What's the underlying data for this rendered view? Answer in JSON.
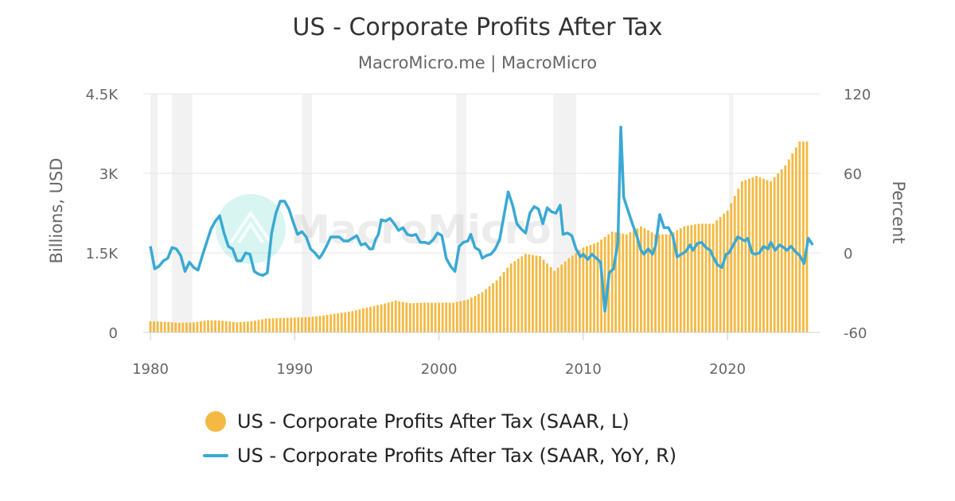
{
  "chart_data": {
    "type": "bar+line",
    "title": "US - Corporate Profits After Tax",
    "subtitle": "MacroMicro.me | MacroMicro",
    "watermark": "MacroMicro",
    "x_ticks": [
      "1980",
      "1990",
      "2000",
      "2010",
      "2020"
    ],
    "xlim": [
      1980,
      2026
    ],
    "y_left": {
      "label": "Billions, USD",
      "ticks": [
        "0",
        "1.5K",
        "3K",
        "4.5K"
      ],
      "ylim": [
        0,
        4500
      ]
    },
    "y_right": {
      "label": "Percent",
      "ticks": [
        "-60",
        "0",
        "60",
        "120"
      ],
      "ylim": [
        -60,
        120
      ]
    },
    "recessions": [
      [
        1980.0,
        1980.5
      ],
      [
        1981.5,
        1982.9
      ],
      [
        1990.5,
        1991.2
      ],
      [
        2001.2,
        2001.9
      ],
      [
        2007.9,
        2009.5
      ],
      [
        2020.1,
        2020.4
      ]
    ],
    "colors": {
      "bars": "#f4b942",
      "line": "#3aa9d4",
      "recession": "#f2f2f2",
      "grid": "#e6e6e6"
    },
    "series": [
      {
        "name": "US - Corporate Profits After Tax (SAAR, L)",
        "type": "bar",
        "axis": "left",
        "points": [
          [
            1980,
            210
          ],
          [
            1981,
            200
          ],
          [
            1982,
            180
          ],
          [
            1983,
            190
          ],
          [
            1984,
            230
          ],
          [
            1985,
            220
          ],
          [
            1986,
            190
          ],
          [
            1987,
            210
          ],
          [
            1988,
            260
          ],
          [
            1989,
            270
          ],
          [
            1990,
            280
          ],
          [
            1991,
            290
          ],
          [
            1992,
            320
          ],
          [
            1993,
            360
          ],
          [
            1994,
            400
          ],
          [
            1995,
            470
          ],
          [
            1996,
            530
          ],
          [
            1997,
            600
          ],
          [
            1998,
            550
          ],
          [
            1999,
            560
          ],
          [
            2000,
            560
          ],
          [
            2001,
            560
          ],
          [
            2002,
            620
          ],
          [
            2003,
            760
          ],
          [
            2004,
            980
          ],
          [
            2005,
            1300
          ],
          [
            2006,
            1480
          ],
          [
            2007,
            1440
          ],
          [
            2008,
            1160
          ],
          [
            2009,
            1400
          ],
          [
            2010,
            1600
          ],
          [
            2011,
            1700
          ],
          [
            2012,
            1900
          ],
          [
            2013,
            1850
          ],
          [
            2014,
            2000
          ],
          [
            2015,
            1850
          ],
          [
            2016,
            1850
          ],
          [
            2017,
            2000
          ],
          [
            2018,
            2050
          ],
          [
            2019,
            2050
          ],
          [
            2020,
            2300
          ],
          [
            2021,
            2850
          ],
          [
            2022,
            2950
          ],
          [
            2023,
            2850
          ],
          [
            2024,
            3150
          ],
          [
            2025,
            3600
          ]
        ]
      },
      {
        "name": "US - Corporate Profits After Tax (SAAR, YoY, R)",
        "type": "line",
        "axis": "right",
        "points": [
          [
            1980.0,
            5
          ],
          [
            1980.3,
            -12
          ],
          [
            1980.6,
            -10
          ],
          [
            1980.9,
            -6
          ],
          [
            1981.2,
            -4
          ],
          [
            1981.5,
            4
          ],
          [
            1981.8,
            3
          ],
          [
            1982.1,
            -2
          ],
          [
            1982.4,
            -14
          ],
          [
            1982.7,
            -7
          ],
          [
            1983.0,
            -11
          ],
          [
            1983.3,
            -13
          ],
          [
            1983.6,
            -2
          ],
          [
            1983.9,
            8
          ],
          [
            1984.2,
            18
          ],
          [
            1984.5,
            24
          ],
          [
            1984.8,
            28
          ],
          [
            1985.1,
            15
          ],
          [
            1985.4,
            5
          ],
          [
            1985.7,
            3
          ],
          [
            1986.0,
            -6
          ],
          [
            1986.3,
            -6
          ],
          [
            1986.6,
            0
          ],
          [
            1986.9,
            -1
          ],
          [
            1987.2,
            -14
          ],
          [
            1987.5,
            -16
          ],
          [
            1987.8,
            -17
          ],
          [
            1988.1,
            -15
          ],
          [
            1988.4,
            15
          ],
          [
            1988.7,
            30
          ],
          [
            1989.0,
            39
          ],
          [
            1989.3,
            39
          ],
          [
            1989.6,
            33
          ],
          [
            1989.9,
            23
          ],
          [
            1990.2,
            14
          ],
          [
            1990.5,
            16
          ],
          [
            1990.8,
            12
          ],
          [
            1991.1,
            3
          ],
          [
            1991.4,
            0
          ],
          [
            1991.7,
            -4
          ],
          [
            1991.9,
            -1
          ],
          [
            1992.2,
            5
          ],
          [
            1992.5,
            12
          ],
          [
            1992.8,
            12
          ],
          [
            1993.1,
            12
          ],
          [
            1993.4,
            9
          ],
          [
            1993.7,
            9
          ],
          [
            1994.0,
            11
          ],
          [
            1994.3,
            13
          ],
          [
            1994.6,
            6
          ],
          [
            1994.9,
            7
          ],
          [
            1995.2,
            3
          ],
          [
            1995.4,
            3
          ],
          [
            1995.6,
            10
          ],
          [
            1995.8,
            14
          ],
          [
            1996.0,
            25
          ],
          [
            1996.3,
            24
          ],
          [
            1996.6,
            26
          ],
          [
            1996.9,
            22
          ],
          [
            1997.2,
            17
          ],
          [
            1997.5,
            19
          ],
          [
            1997.8,
            14
          ],
          [
            1998.1,
            13
          ],
          [
            1998.4,
            14
          ],
          [
            1998.7,
            8
          ],
          [
            1999.0,
            8
          ],
          [
            1999.3,
            7
          ],
          [
            1999.6,
            10
          ],
          [
            1999.9,
            15
          ],
          [
            2000.2,
            13
          ],
          [
            2000.5,
            -4
          ],
          [
            2000.8,
            -10
          ],
          [
            2001.1,
            -14
          ],
          [
            2001.4,
            5
          ],
          [
            2001.7,
            8
          ],
          [
            2002.0,
            9
          ],
          [
            2002.2,
            14
          ],
          [
            2002.5,
            4
          ],
          [
            2002.8,
            2
          ],
          [
            2003.0,
            -4
          ],
          [
            2003.3,
            -2
          ],
          [
            2003.6,
            -1
          ],
          [
            2003.9,
            3
          ],
          [
            2004.2,
            10
          ],
          [
            2004.5,
            28
          ],
          [
            2004.8,
            46
          ],
          [
            2005.1,
            36
          ],
          [
            2005.4,
            22
          ],
          [
            2005.7,
            18
          ],
          [
            2006.0,
            15
          ],
          [
            2006.3,
            30
          ],
          [
            2006.6,
            35
          ],
          [
            2006.9,
            33
          ],
          [
            2007.2,
            22
          ],
          [
            2007.5,
            34
          ],
          [
            2007.8,
            31
          ],
          [
            2008.1,
            30
          ],
          [
            2008.4,
            36
          ],
          [
            2008.6,
            14
          ],
          [
            2008.9,
            15
          ],
          [
            2009.2,
            13
          ],
          [
            2009.5,
            3
          ],
          [
            2009.8,
            -3
          ],
          [
            2010.0,
            -1
          ],
          [
            2010.3,
            -5
          ],
          [
            2010.6,
            -1
          ],
          [
            2010.9,
            -4
          ],
          [
            2011.2,
            -7
          ],
          [
            2011.5,
            -44
          ],
          [
            2011.8,
            -15
          ],
          [
            2012.1,
            -12
          ],
          [
            2012.4,
            8
          ],
          [
            2012.6,
            95
          ],
          [
            2012.8,
            42
          ],
          [
            2013.1,
            32
          ],
          [
            2013.4,
            22
          ],
          [
            2013.7,
            13
          ],
          [
            2014.0,
            2
          ],
          [
            2014.2,
            -1
          ],
          [
            2014.5,
            3
          ],
          [
            2014.8,
            -1
          ],
          [
            2015.0,
            5
          ],
          [
            2015.3,
            29
          ],
          [
            2015.6,
            19
          ],
          [
            2015.9,
            19
          ],
          [
            2016.2,
            13
          ],
          [
            2016.5,
            -3
          ],
          [
            2016.8,
            -1
          ],
          [
            2017.1,
            1
          ],
          [
            2017.4,
            6
          ],
          [
            2017.6,
            2
          ],
          [
            2017.9,
            7
          ],
          [
            2018.2,
            8
          ],
          [
            2018.5,
            4
          ],
          [
            2018.8,
            2
          ],
          [
            2019.0,
            -3
          ],
          [
            2019.3,
            -9
          ],
          [
            2019.6,
            -11
          ],
          [
            2019.9,
            -1
          ],
          [
            2020.1,
            0
          ],
          [
            2020.4,
            6
          ],
          [
            2020.7,
            12
          ],
          [
            2020.9,
            11
          ],
          [
            2021.2,
            9
          ],
          [
            2021.4,
            11
          ],
          [
            2021.7,
            0
          ],
          [
            2021.9,
            -1
          ],
          [
            2022.2,
            0
          ],
          [
            2022.5,
            5
          ],
          [
            2022.8,
            3
          ],
          [
            2023.0,
            8
          ],
          [
            2023.3,
            2
          ],
          [
            2023.6,
            6
          ],
          [
            2023.9,
            4
          ],
          [
            2024.1,
            2
          ],
          [
            2024.4,
            5
          ],
          [
            2024.7,
            1
          ],
          [
            2025.0,
            -2
          ],
          [
            2025.3,
            -8
          ],
          [
            2025.6,
            11
          ],
          [
            2025.9,
            6
          ]
        ]
      }
    ]
  }
}
